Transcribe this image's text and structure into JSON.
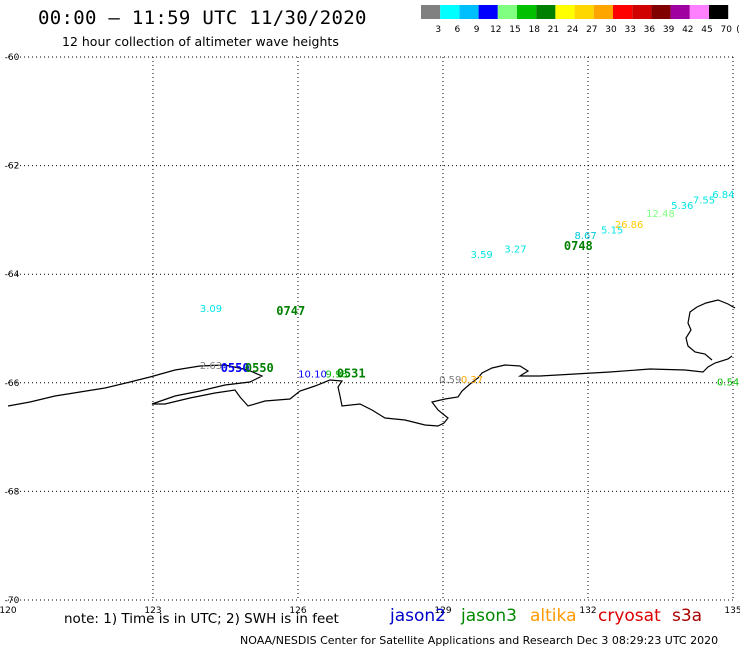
{
  "header": {
    "title": "00:00 – 11:59 UTC 11/30/2020",
    "subtitle": "12 hour collection of altimeter wave heights"
  },
  "color_legend": {
    "labels": [
      "3",
      "6",
      "9",
      "12",
      "15",
      "18",
      "21",
      "24",
      "27",
      "30",
      "33",
      "36",
      "39",
      "42",
      "45",
      "70"
    ],
    "unit": "(ft)",
    "colors": [
      "#808080",
      "#00ffff",
      "#00bfff",
      "#0000ff",
      "#80ff80",
      "#00c000",
      "#008000",
      "#ffff00",
      "#ffd700",
      "#ffa500",
      "#ff0000",
      "#d00000",
      "#800000",
      "#a000a0",
      "#ff80ff",
      "#000000"
    ]
  },
  "map": {
    "lon_ticks": [
      "120",
      "123",
      "126",
      "129",
      "132",
      "135"
    ],
    "lat_ticks": [
      "-60",
      "-62",
      "-64",
      "-66",
      "-68",
      "-70"
    ],
    "lon_range": [
      120,
      135
    ],
    "lat_range": [
      -70,
      -60
    ],
    "gridlines": "dotted"
  },
  "observations": [
    {
      "text": "3.59",
      "lon": 129.8,
      "lat": -63.7,
      "color": "#00e5e5"
    },
    {
      "text": "3.27",
      "lon": 130.5,
      "lat": -63.6,
      "color": "#00e5e5"
    },
    {
      "text": "8.67",
      "lon": 131.95,
      "lat": -63.35,
      "color": "#00c8d8"
    },
    {
      "text": "5.15",
      "lon": 132.5,
      "lat": -63.25,
      "color": "#00e5e5"
    },
    {
      "text": "26.86",
      "lon": 132.85,
      "lat": -63.15,
      "color": "#ffcc00"
    },
    {
      "text": "12.48",
      "lon": 133.5,
      "lat": -62.95,
      "color": "#80ff80"
    },
    {
      "text": "5.36",
      "lon": 133.95,
      "lat": -62.8,
      "color": "#00e5e5"
    },
    {
      "text": "7.55",
      "lon": 134.4,
      "lat": -62.7,
      "color": "#00e5e5"
    },
    {
      "text": "6.84",
      "lon": 134.8,
      "lat": -62.6,
      "color": "#00e5e5"
    },
    {
      "text": "3.09",
      "lon": 124.2,
      "lat": -64.7,
      "color": "#00e5e5"
    },
    {
      "text": "2.63",
      "lon": 124.2,
      "lat": -65.75,
      "color": "#808080"
    },
    {
      "text": "10.10",
      "lon": 126.3,
      "lat": -65.9,
      "color": "#0000ff"
    },
    {
      "text": "9.98",
      "lon": 126.8,
      "lat": -65.9,
      "color": "#00c000"
    },
    {
      "text": "0.59",
      "lon": 129.15,
      "lat": -66.0,
      "color": "#808080"
    },
    {
      "text": "0.37",
      "lon": 129.6,
      "lat": -66.0,
      "color": "#ffa500"
    },
    {
      "text": "0.54",
      "lon": 134.9,
      "lat": -66.05,
      "color": "#00c000"
    }
  ],
  "pass_labels": [
    {
      "text": "0747",
      "lon": 125.85,
      "lat": -64.75,
      "color": "#008000"
    },
    {
      "text": "0748",
      "lon": 131.8,
      "lat": -63.55,
      "color": "#008000"
    },
    {
      "text": "0550",
      "lon": 124.7,
      "lat": -65.8,
      "color": "#0000ff"
    },
    {
      "text": "0550",
      "lon": 125.2,
      "lat": -65.8,
      "color": "#008000"
    },
    {
      "text": "0531",
      "lon": 127.1,
      "lat": -65.9,
      "color": "#008000"
    }
  ],
  "footer": {
    "note": "note: 1) Time is in UTC; 2) SWH is in feet",
    "satellites": [
      {
        "name": "jason2",
        "color": "#0000cc"
      },
      {
        "name": "jason3",
        "color": "#008800"
      },
      {
        "name": "altika",
        "color": "#ff9900"
      },
      {
        "name": "cryosat",
        "color": "#dd0000"
      },
      {
        "name": "s3a",
        "color": "#aa0000"
      }
    ],
    "credit": "NOAA/NESDIS Center for Satellite Applications and Research    Dec  3 08:29:23 UTC 2020"
  }
}
